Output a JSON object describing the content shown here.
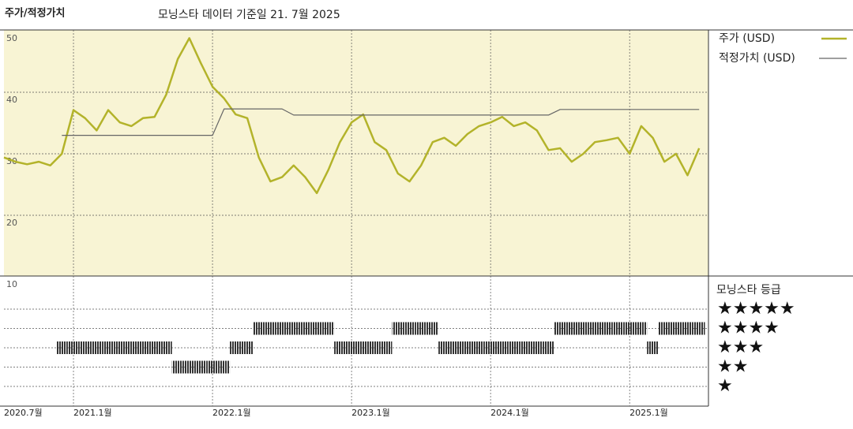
{
  "chart_data": {
    "type": "line",
    "title": "주가/적정가치",
    "subtitle": "모닝스타 데이터 기준일 21. 7월 2025",
    "x": [
      "2020-07",
      "2020-08",
      "2020-09",
      "2020-10",
      "2020-11",
      "2020-12",
      "2021-01",
      "2021-02",
      "2021-03",
      "2021-04",
      "2021-05",
      "2021-06",
      "2021-07",
      "2021-08",
      "2021-09",
      "2021-10",
      "2021-11",
      "2021-12",
      "2022-01",
      "2022-02",
      "2022-03",
      "2022-04",
      "2022-05",
      "2022-06",
      "2022-07",
      "2022-08",
      "2022-09",
      "2022-10",
      "2022-11",
      "2022-12",
      "2023-01",
      "2023-02",
      "2023-03",
      "2023-04",
      "2023-05",
      "2023-06",
      "2023-07",
      "2023-08",
      "2023-09",
      "2023-10",
      "2023-11",
      "2023-12",
      "2024-01",
      "2024-02",
      "2024-03",
      "2024-04",
      "2024-05",
      "2024-06",
      "2024-07",
      "2024-08",
      "2024-09",
      "2024-10",
      "2024-11",
      "2024-12",
      "2025-01",
      "2025-02",
      "2025-03",
      "2025-04",
      "2025-05",
      "2025-06",
      "2025-07"
    ],
    "series": [
      {
        "name": "주가 (USD)",
        "color": "#b3b32a",
        "values": [
          29.4,
          28.7,
          28.3,
          28.7,
          28.1,
          30.0,
          37.1,
          35.8,
          33.8,
          37.1,
          35.1,
          34.5,
          35.8,
          36.0,
          39.6,
          45.4,
          48.8,
          44.7,
          40.9,
          39.0,
          36.4,
          35.8,
          29.4,
          25.5,
          26.2,
          28.1,
          26.2,
          23.6,
          27.4,
          31.9,
          35.1,
          36.4,
          31.9,
          30.6,
          26.8,
          25.5,
          28.1,
          31.9,
          32.6,
          31.3,
          33.2,
          34.5,
          35.1,
          36.0,
          34.5,
          35.1,
          33.8,
          30.6,
          30.9,
          28.7,
          30.0,
          31.9,
          32.2,
          32.6,
          30.0,
          34.5,
          32.6,
          28.7,
          30.0,
          26.5,
          30.9
        ]
      },
      {
        "name": "적정가치 (USD)",
        "color": "#666666",
        "values": [
          null,
          null,
          null,
          null,
          null,
          33,
          33,
          33,
          33,
          33,
          33,
          33,
          33,
          33,
          33,
          33,
          33,
          33,
          33,
          37.3,
          37.3,
          37.3,
          37.3,
          37.3,
          37.3,
          36.3,
          36.3,
          36.3,
          36.3,
          36.3,
          36.3,
          36.3,
          36.3,
          36.3,
          36.3,
          36.3,
          36.3,
          36.3,
          36.3,
          36.3,
          36.3,
          36.3,
          36.3,
          36.3,
          36.3,
          36.3,
          36.3,
          36.3,
          37.2,
          37.2,
          37.2,
          37.2,
          37.2,
          37.2,
          37.2,
          37.2,
          37.2,
          37.2,
          37.2,
          37.2,
          37.2
        ]
      }
    ],
    "ylim": [
      10,
      50
    ],
    "yticks": [
      10,
      20,
      30,
      40,
      50
    ],
    "xticks": [
      {
        "value": "2020-07",
        "label": "2020.7월"
      },
      {
        "value": "2021-01",
        "label": "2021.1월"
      },
      {
        "value": "2022-01",
        "label": "2022.1월"
      },
      {
        "value": "2023-01",
        "label": "2023.1월"
      },
      {
        "value": "2024-01",
        "label": "2024.1월"
      },
      {
        "value": "2025-01",
        "label": "2025.1월"
      }
    ],
    "grid": true,
    "ratings": {
      "title": "모닝스타 등급",
      "color": "#333333",
      "levels": [
        {
          "value": 5,
          "label": "★★★★★"
        },
        {
          "value": 4,
          "label": "★★★★"
        },
        {
          "value": 3,
          "label": "★★★"
        },
        {
          "value": 2,
          "label": "★★"
        },
        {
          "value": 1,
          "label": "★"
        }
      ],
      "values": [
        null,
        null,
        null,
        null,
        null,
        3,
        3,
        3,
        3,
        3,
        3,
        3,
        3,
        3,
        3,
        2,
        2,
        2,
        2,
        2,
        3,
        3,
        4,
        4,
        4,
        4,
        4,
        4,
        4,
        3,
        3,
        3,
        3,
        3,
        4,
        4,
        4,
        4,
        3,
        3,
        3,
        3,
        3,
        3,
        3,
        3,
        3,
        3,
        4,
        4,
        4,
        4,
        4,
        4,
        4,
        4,
        3,
        4,
        4,
        4,
        4
      ]
    }
  }
}
